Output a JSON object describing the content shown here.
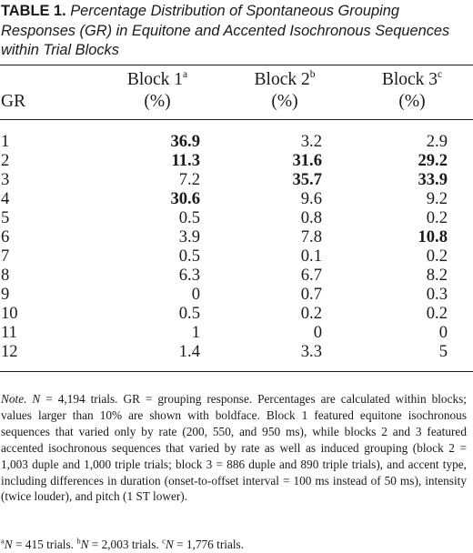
{
  "caption": {
    "label": "TABLE 1.",
    "text": "Percentage Distribution of Spontaneous Grouping Responses (GR) in Equitone and Accented Isochronous Sequences within Trial Blocks"
  },
  "header": {
    "gr": "GR",
    "columns": [
      {
        "name": "Block 1",
        "sup": "a",
        "unit": "(%)"
      },
      {
        "name": "Block 2",
        "sup": "b",
        "unit": "(%)"
      },
      {
        "name": "Block 3",
        "sup": "c",
        "unit": "(%)"
      }
    ]
  },
  "rows": [
    {
      "gr": "1",
      "b1": "36.9",
      "b2": "3.2",
      "b3": "2.9"
    },
    {
      "gr": "2",
      "b1": "11.3",
      "b2": "31.6",
      "b3": "29.2"
    },
    {
      "gr": "3",
      "b1": "7.2",
      "b2": "35.7",
      "b3": "33.9"
    },
    {
      "gr": "4",
      "b1": "30.6",
      "b2": "9.6",
      "b3": "9.2"
    },
    {
      "gr": "5",
      "b1": "0.5",
      "b2": "0.8",
      "b3": "0.2"
    },
    {
      "gr": "6",
      "b1": "3.9",
      "b2": "7.8",
      "b3": "10.8"
    },
    {
      "gr": "7",
      "b1": "0.5",
      "b2": "0.1",
      "b3": "0.2"
    },
    {
      "gr": "8",
      "b1": "6.3",
      "b2": "6.7",
      "b3": "8.2"
    },
    {
      "gr": "9",
      "b1": "0",
      "b2": "0.7",
      "b3": "0.3"
    },
    {
      "gr": "10",
      "b1": "0.5",
      "b2": "0.2",
      "b3": "0.2"
    },
    {
      "gr": "11",
      "b1": "1",
      "b2": "0",
      "b3": "0"
    },
    {
      "gr": "12",
      "b1": "1.4",
      "b2": "3.3",
      "b3": "5"
    }
  ],
  "note": {
    "label": "Note.",
    "n_var": "N",
    "text": " = 4,194 trials. GR = grouping response. Percentages are calculated within blocks; values larger than 10% are shown with boldface. Block 1 featured equitone isochronous sequences that varied only by rate (200, 550, and 950 ms), while blocks 2 and 3 featured accented isochronous sequences that varied by rate as well as induced grouping (block 2 = 1,003 duple and 1,000 triple trials; block 3 = 886 duple and 890 triple trials), and accent type, including differences in duration (onset-to-offset interval = 100 ms instead of 50 ms), intensity (twice louder), and pitch (1 ST lower)."
  },
  "footnotes": [
    {
      "sup": "a",
      "var": "N",
      "text": " = 415 trials. "
    },
    {
      "sup": "b",
      "var": "N",
      "text": " = 2,003 trials. "
    },
    {
      "sup": "c",
      "var": "N",
      "text": " = 1,776 trials."
    }
  ]
}
